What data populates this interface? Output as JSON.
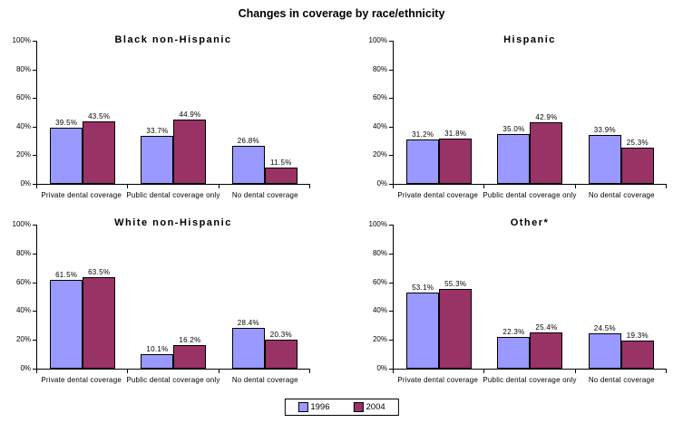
{
  "page_title": "Changes in coverage by race/ethnicity",
  "colors": {
    "background": "#FFFFFF",
    "axis": "#000000",
    "bar_border": "#000000",
    "series_1996": "#9999FF",
    "series_2004": "#993366"
  },
  "legend": {
    "position": "bottom-center",
    "items": [
      {
        "label": "1996",
        "color": "#9999FF"
      },
      {
        "label": "2004",
        "color": "#993366"
      }
    ]
  },
  "chart_data": [
    {
      "type": "bar",
      "title": "Black non-Hispanic",
      "categories": [
        "Private dental coverage",
        "Public dental coverage only",
        "No dental coverage"
      ],
      "series": [
        {
          "name": "1996",
          "color": "#9999FF",
          "values": [
            39.5,
            33.7,
            26.8
          ],
          "labels": [
            "39.5%",
            "33.7%",
            "26.8%"
          ]
        },
        {
          "name": "2004",
          "color": "#993366",
          "values": [
            43.5,
            44.9,
            11.5
          ],
          "labels": [
            "43.5%",
            "44.9%",
            "11.5%"
          ]
        }
      ],
      "ylim": [
        0,
        100
      ],
      "yticks": [
        "0%",
        "20%",
        "40%",
        "60%",
        "80%",
        "100%"
      ],
      "grid": false,
      "data_labels": true
    },
    {
      "type": "bar",
      "title": "Hispanic",
      "categories": [
        "Private dental coverage",
        "Public dental coverage only",
        "No dental coverage"
      ],
      "series": [
        {
          "name": "1996",
          "color": "#9999FF",
          "values": [
            31.2,
            35.0,
            33.9
          ],
          "labels": [
            "31.2%",
            "35.0%",
            "33.9%"
          ]
        },
        {
          "name": "2004",
          "color": "#993366",
          "values": [
            31.8,
            42.9,
            25.3
          ],
          "labels": [
            "31.8%",
            "42.9%",
            "25.3%"
          ]
        }
      ],
      "ylim": [
        0,
        100
      ],
      "yticks": [
        "0%",
        "20%",
        "40%",
        "60%",
        "80%",
        "100%"
      ],
      "grid": false,
      "data_labels": true
    },
    {
      "type": "bar",
      "title": "White non-Hispanic",
      "categories": [
        "Private dental coverage",
        "Public dental coverage only",
        "No dental coverage"
      ],
      "series": [
        {
          "name": "1996",
          "color": "#9999FF",
          "values": [
            61.5,
            10.1,
            28.4
          ],
          "labels": [
            "61.5%",
            "10.1%",
            "28.4%"
          ]
        },
        {
          "name": "2004",
          "color": "#993366",
          "values": [
            63.5,
            16.2,
            20.3
          ],
          "labels": [
            "63.5%",
            "16.2%",
            "20.3%"
          ]
        }
      ],
      "ylim": [
        0,
        100
      ],
      "yticks": [
        "0%",
        "20%",
        "40%",
        "60%",
        "80%",
        "100%"
      ],
      "grid": false,
      "data_labels": true
    },
    {
      "type": "bar",
      "title": "Other*",
      "categories": [
        "Private dental coverage",
        "Public dental coverage only",
        "No dental coverage"
      ],
      "series": [
        {
          "name": "1996",
          "color": "#9999FF",
          "values": [
            53.1,
            22.3,
            24.5
          ],
          "labels": [
            "53.1%",
            "22.3%",
            "24.5%"
          ]
        },
        {
          "name": "2004",
          "color": "#993366",
          "values": [
            55.3,
            25.4,
            19.3
          ],
          "labels": [
            "55.3%",
            "25.4%",
            "19.3%"
          ]
        }
      ],
      "ylim": [
        0,
        100
      ],
      "yticks": [
        "0%",
        "20%",
        "40%",
        "60%",
        "80%",
        "100%"
      ],
      "grid": false,
      "data_labels": true
    }
  ]
}
